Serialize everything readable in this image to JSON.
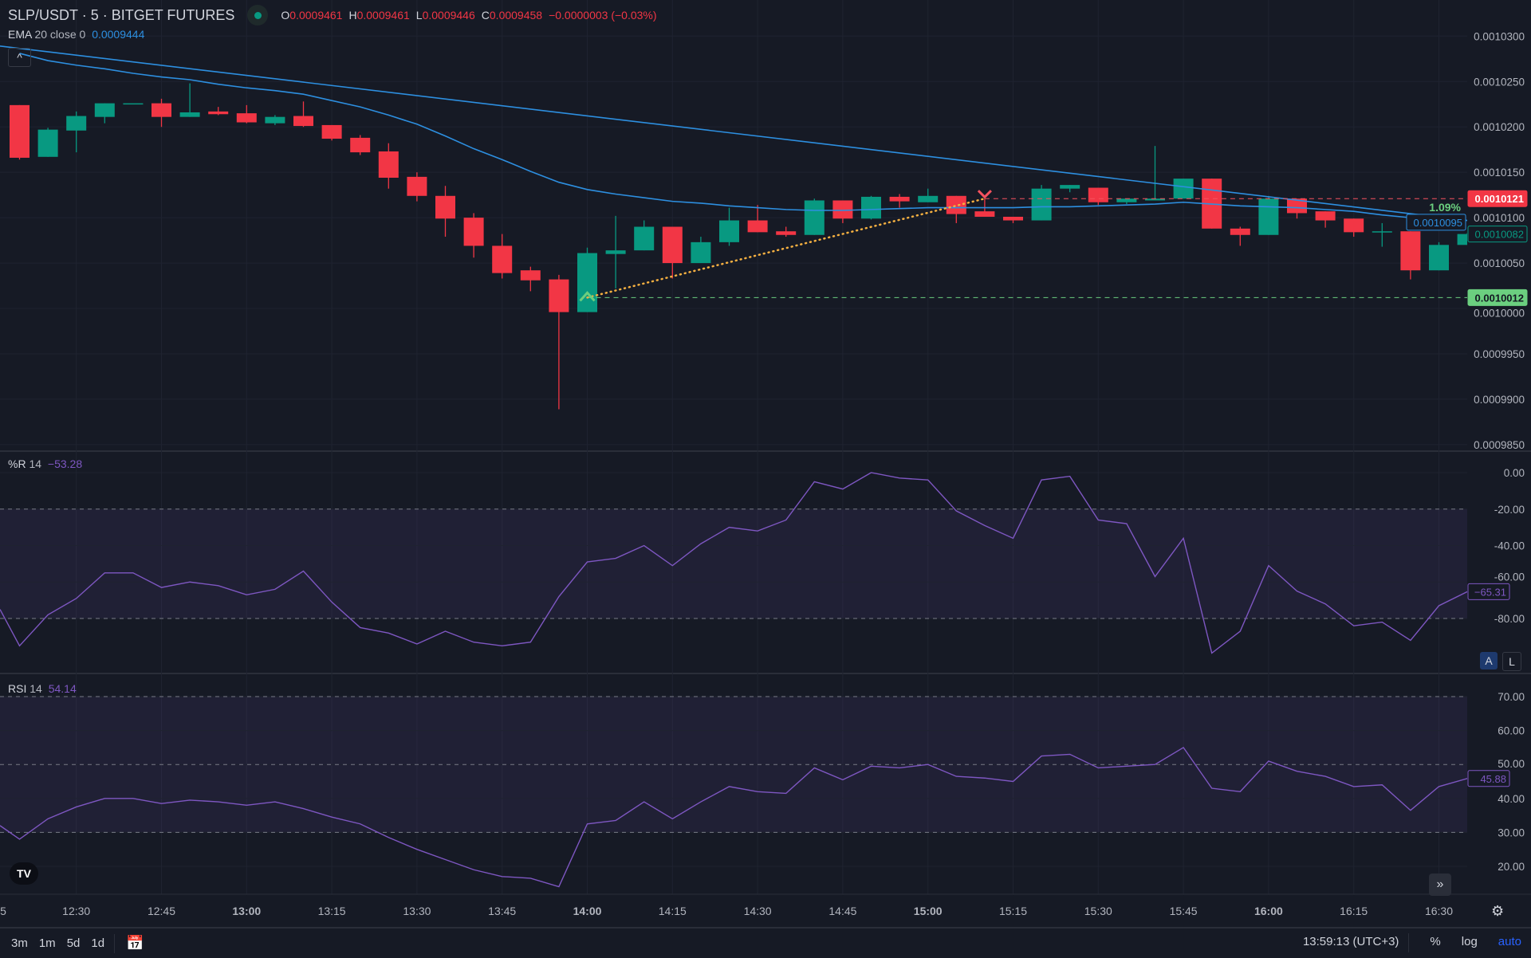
{
  "header": {
    "symbol": "SLP/USDT · 5 · BITGET FUTURES",
    "o_label": "O",
    "o": "0.0009461",
    "h_label": "H",
    "h": "0.0009461",
    "l_label": "L",
    "l": "0.0009446",
    "c_label": "C",
    "c": "0.0009458",
    "change": "−0.0000003 (−0.03%)",
    "status_color": "#089981"
  },
  "ema_legend": {
    "name": "EMA",
    "params": "20 close 0",
    "value": "0.0009444"
  },
  "wr_legend": {
    "name": "%R",
    "params": "14",
    "value": "−53.28"
  },
  "rsi_legend": {
    "name": "RSI",
    "params": "14",
    "value": "54.14"
  },
  "collapse_icon": "chevron-up-icon",
  "buttons": {
    "auto_scale": "A",
    "lock": "L",
    "scroll_forward": "»"
  },
  "bottom_bar": {
    "ranges": [
      "3m",
      "1m",
      "5d",
      "1d"
    ],
    "clock": "13:59:13 (UTC+3)",
    "percent": "%",
    "log": "log",
    "auto": "auto"
  },
  "colors": {
    "up": "#089981",
    "down": "#f23645",
    "ema": "#2d8fe0",
    "oscillator": "#7e57c2",
    "background": "#161a25",
    "accent": "#2962ff"
  },
  "chart_data": [
    {
      "type": "candlestick",
      "title": "SLP/USDT · 5 · BITGET FUTURES",
      "price_ticks": [
        "0.0010300",
        "0.0010250",
        "0.0010200",
        "0.0010150",
        "0.0010100",
        "0.0010050",
        "0.0010000",
        "0.0009950",
        "0.0009900",
        "0.0009850"
      ],
      "time_ticks": [
        "5",
        "12:30",
        "12:45",
        "13:00",
        "13:15",
        "13:30",
        "13:45",
        "14:00",
        "14:15",
        "14:30",
        "14:45",
        "15:00",
        "15:15",
        "15:30",
        "15:45",
        "16:00",
        "16:15",
        "16:30"
      ],
      "bold_time_ticks": [
        "13:00",
        "14:00",
        "15:00",
        "16:00"
      ],
      "ylim": [
        0.00098,
        0.0010335
      ],
      "candles_columns": [
        "time",
        "open",
        "high",
        "low",
        "close"
      ],
      "candles": [
        [
          "12:20",
          0.0010224,
          0.0010224,
          0.0010164,
          0.0010166
        ],
        [
          "12:25",
          0.0010167,
          0.0010199,
          0.0010167,
          0.0010197
        ],
        [
          "12:30",
          0.0010196,
          0.0010217,
          0.0010172,
          0.0010212
        ],
        [
          "12:35",
          0.0010211,
          0.0010226,
          0.0010204,
          0.0010226
        ],
        [
          "12:40",
          0.0010226,
          0.0010226,
          0.0010226,
          0.0010226
        ],
        [
          "12:45",
          0.0010226,
          0.0010231,
          0.00102,
          0.0010211
        ],
        [
          "12:50",
          0.0010211,
          0.0010248,
          0.0010211,
          0.0010216
        ],
        [
          "12:55",
          0.0010217,
          0.0010222,
          0.0010213,
          0.0010214
        ],
        [
          "13:00",
          0.0010215,
          0.0010224,
          0.0010204,
          0.0010205
        ],
        [
          "13:05",
          0.0010204,
          0.0010213,
          0.0010202,
          0.0010211
        ],
        [
          "13:10",
          0.0010212,
          0.0010228,
          0.00102,
          0.0010201
        ],
        [
          "13:15",
          0.0010202,
          0.0010202,
          0.0010185,
          0.0010187
        ],
        [
          "13:20",
          0.0010188,
          0.0010191,
          0.0010169,
          0.0010172
        ],
        [
          "13:25",
          0.0010173,
          0.0010182,
          0.0010132,
          0.0010144
        ],
        [
          "13:30",
          0.0010145,
          0.001015,
          0.0010118,
          0.0010124
        ],
        [
          "13:35",
          0.0010124,
          0.0010135,
          0.0010079,
          0.0010099
        ],
        [
          "13:40",
          0.00101,
          0.0010105,
          0.0010056,
          0.0010069
        ],
        [
          "13:45",
          0.0010069,
          0.0010082,
          0.0010033,
          0.0010039
        ],
        [
          "13:50",
          0.0010042,
          0.0010046,
          0.0010019,
          0.0010031
        ],
        [
          "13:55",
          0.0010032,
          0.0010037,
          0.0009889,
          0.0009996
        ],
        [
          "14:00",
          0.0009996,
          0.0010067,
          0.0009996,
          0.0010061
        ],
        [
          "14:05",
          0.001006,
          0.0010102,
          0.0010022,
          0.0010064
        ],
        [
          "14:10",
          0.0010064,
          0.0010097,
          0.0010064,
          0.001009
        ],
        [
          "14:15",
          0.001009,
          0.001009,
          0.0010033,
          0.001005
        ],
        [
          "14:20",
          0.001005,
          0.0010079,
          0.001005,
          0.0010073
        ],
        [
          "14:25",
          0.0010073,
          0.0010111,
          0.0010069,
          0.0010097
        ],
        [
          "14:30",
          0.0010097,
          0.0010114,
          0.0010084,
          0.0010084
        ],
        [
          "14:35",
          0.0010085,
          0.001009,
          0.0010079,
          0.0010081
        ],
        [
          "14:40",
          0.0010081,
          0.0010121,
          0.0010081,
          0.0010119
        ],
        [
          "14:45",
          0.0010119,
          0.0010119,
          0.0010094,
          0.0010099
        ],
        [
          "14:50",
          0.0010099,
          0.0010124,
          0.0010098,
          0.0010123
        ],
        [
          "14:55",
          0.0010123,
          0.0010126,
          0.0010111,
          0.0010118
        ],
        [
          "15:00",
          0.0010117,
          0.0010132,
          0.0010117,
          0.0010124
        ],
        [
          "15:05",
          0.0010124,
          0.0010124,
          0.0010094,
          0.0010104
        ],
        [
          "15:10",
          0.0010107,
          0.0010121,
          0.0010101,
          0.0010101
        ],
        [
          "15:15",
          0.0010101,
          0.0010101,
          0.0010094,
          0.0010097
        ],
        [
          "15:20",
          0.0010097,
          0.0010136,
          0.0010097,
          0.0010132
        ],
        [
          "15:25",
          0.0010132,
          0.0010136,
          0.0010128,
          0.0010136
        ],
        [
          "15:30",
          0.0010133,
          0.0010133,
          0.0010114,
          0.0010117
        ],
        [
          "15:35",
          0.0010117,
          0.0010121,
          0.0010115,
          0.0010121
        ],
        [
          "15:40",
          0.0010119,
          0.0010179,
          0.0010119,
          0.0010121
        ],
        [
          "15:45",
          0.0010121,
          0.0010143,
          0.0010121,
          0.0010143
        ],
        [
          "15:50",
          0.0010143,
          0.0010143,
          0.0010088,
          0.0010088
        ],
        [
          "15:55",
          0.0010088,
          0.001009,
          0.0010069,
          0.0010081
        ],
        [
          "16:00",
          0.0010081,
          0.0010124,
          0.0010081,
          0.0010121
        ],
        [
          "16:05",
          0.0010121,
          0.0010121,
          0.0010099,
          0.0010105
        ],
        [
          "16:10",
          0.0010107,
          0.0010107,
          0.0010089,
          0.0010097
        ],
        [
          "16:15",
          0.0010099,
          0.0010099,
          0.0010079,
          0.0010084
        ],
        [
          "16:20",
          0.0010084,
          0.0010094,
          0.0010068,
          0.0010085
        ],
        [
          "16:25",
          0.0010085,
          0.0010085,
          0.0010032,
          0.0010042
        ],
        [
          "16:30",
          0.0010042,
          0.0010073,
          0.0010042,
          0.001007
        ],
        [
          "16:35",
          0.001007,
          0.0010083,
          0.001007,
          0.0010082
        ]
      ],
      "ema": [
        0.0010281,
        0.0010273,
        0.0010268,
        0.0010264,
        0.0010259,
        0.0010255,
        0.0010252,
        0.0010247,
        0.0010243,
        0.001024,
        0.0010236,
        0.0010229,
        0.0010222,
        0.0010213,
        0.0010203,
        0.001019,
        0.0010176,
        0.0010164,
        0.0010151,
        0.0010139,
        0.0010131,
        0.0010126,
        0.0010122,
        0.0010118,
        0.0010116,
        0.0010113,
        0.0010111,
        0.0010109,
        0.0010108,
        0.0010108,
        0.0010109,
        0.001011,
        0.0010111,
        0.0010111,
        0.0010111,
        0.0010111,
        0.0010112,
        0.0010112,
        0.0010113,
        0.0010114,
        0.0010115,
        0.0010117,
        0.0010115,
        0.0010113,
        0.0010112,
        0.0010111,
        0.0010109,
        0.0010107,
        0.0010103,
        0.00101,
        0.0010098,
        0.0010097
      ],
      "price_labels": [
        {
          "value": "0.0010121",
          "style": "filled",
          "color": "#f23645"
        },
        {
          "value": "0.0010095",
          "style": "outline",
          "color": "#2d8fe0"
        },
        {
          "value": "0.0010082",
          "style": "outline",
          "color": "#089981"
        },
        {
          "value": "0.0010012",
          "style": "filled",
          "color": "#6bcf7f"
        }
      ],
      "measure": {
        "from_time": "14:00",
        "from_price": 0.0010012,
        "to_time": "15:10",
        "to_price": 0.0010121,
        "label": "1.09%"
      }
    },
    {
      "type": "line",
      "name": "%R 14",
      "ylim": [
        -105,
        8
      ],
      "ticks": [
        "0.00",
        "-20.00",
        "-40.00",
        "-60.00",
        "-80.00"
      ],
      "band": [
        -80,
        -20
      ],
      "values": [
        -95,
        -78,
        -69,
        -55,
        -55,
        -63,
        -60,
        -62,
        -67,
        -64,
        -54,
        -71,
        -85,
        -88,
        -94,
        -87,
        -93,
        -95,
        -93,
        -68,
        -49,
        -47,
        -40,
        -51,
        -39,
        -30,
        -32,
        -26,
        -5,
        -9,
        0,
        -3,
        -4,
        -21,
        -29,
        -36,
        -4,
        -2,
        -26,
        -28,
        -57,
        -36,
        -99,
        -87,
        -51,
        -65,
        -72,
        -84,
        -82,
        -92,
        -73,
        -65.31
      ],
      "last_label": "−65.31"
    },
    {
      "type": "line",
      "name": "RSI 14",
      "ylim": [
        12,
        76
      ],
      "ticks": [
        "70.00",
        "60.00",
        "50.00",
        "40.00",
        "30.00",
        "20.00"
      ],
      "band": [
        30,
        70
      ],
      "dashed_levels": [
        70,
        50,
        30
      ],
      "values": [
        28,
        34,
        37.5,
        40,
        40,
        38.5,
        39.5,
        39,
        38,
        39,
        37,
        34.5,
        32.5,
        28.5,
        25,
        22,
        19,
        17,
        16.5,
        14,
        32.5,
        33.5,
        39,
        34,
        39,
        43.5,
        42,
        41.5,
        49,
        45.5,
        49.5,
        49,
        50,
        46.5,
        46,
        45,
        52.5,
        53,
        49,
        49.5,
        50,
        55,
        43,
        42,
        51,
        48,
        46.5,
        43.5,
        44,
        36.5,
        43.5,
        45.88
      ],
      "last_label": "45.88"
    }
  ]
}
